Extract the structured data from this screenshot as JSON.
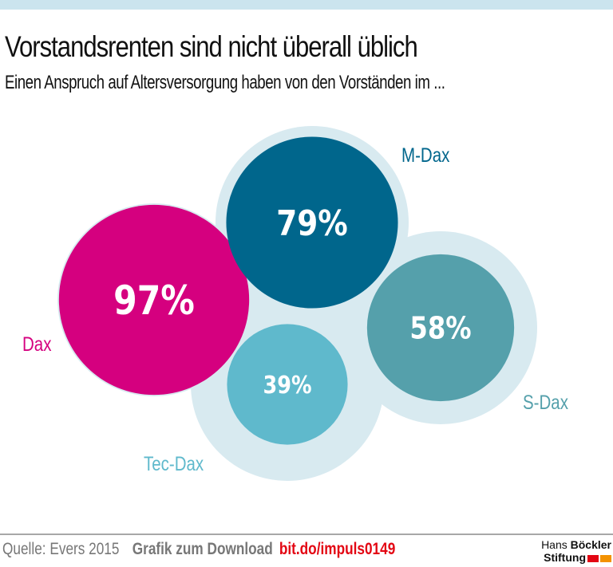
{
  "header": {
    "title": "Vorstandsrenten sind nicht überall üblich",
    "subtitle": "Einen Anspruch auf Altersversorgung haben von den Vorständen im ..."
  },
  "colors": {
    "top_band": "#cbe4ee",
    "halo": "#d8eaf0",
    "dax": "#d5007f",
    "mdax": "#00668c",
    "sdax": "#55a0ab",
    "tecdax": "#5fb9cc"
  },
  "chart_data": {
    "type": "bubble",
    "title": "Vorstandsrenten sind nicht überall üblich",
    "subtitle": "Einen Anspruch auf Altersversorgung haben von den Vorständen im ...",
    "unit": "%",
    "reference_total": 100,
    "series": [
      {
        "name": "Dax",
        "value": 97,
        "label": "97%",
        "color": "#d5007f"
      },
      {
        "name": "M-Dax",
        "value": 79,
        "label": "79%",
        "color": "#00668c"
      },
      {
        "name": "S-Dax",
        "value": 58,
        "label": "58%",
        "color": "#55a0ab"
      },
      {
        "name": "Tec-Dax",
        "value": 39,
        "label": "39%",
        "color": "#5fb9cc"
      }
    ]
  },
  "footer": {
    "source": "Quelle: Evers 2015",
    "download_label": "Grafik zum Download",
    "download_link": "bit.do/impuls0149",
    "logo_line1_regular": "Hans",
    "logo_line1_bold": "Böckler",
    "logo_line2_bold": "Stiftung",
    "logo_colors": [
      "#e30613",
      "#f39200"
    ]
  }
}
